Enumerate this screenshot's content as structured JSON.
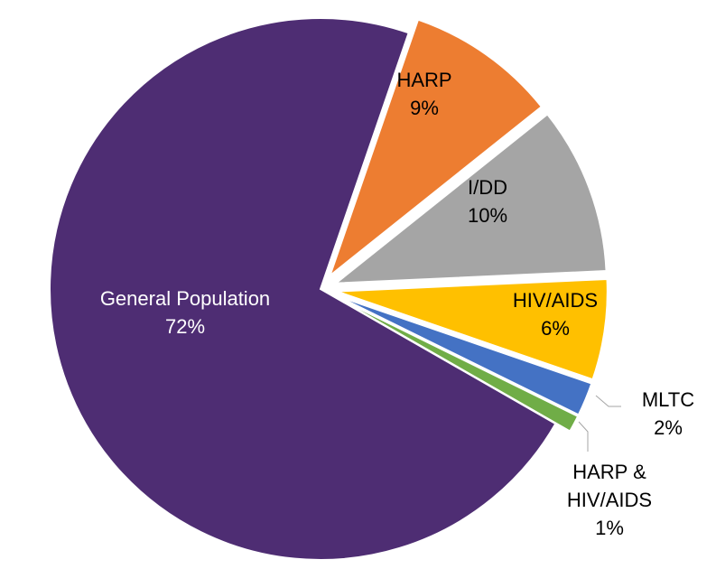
{
  "chart_data": {
    "type": "pie",
    "slices": [
      {
        "name": "HARP",
        "label": "HARP",
        "percent_label": "9%",
        "value": 9,
        "color": "#ED7D31"
      },
      {
        "name": "I/DD",
        "label": "I/DD",
        "percent_label": "10%",
        "value": 10,
        "color": "#A5A5A5"
      },
      {
        "name": "HIV/AIDS",
        "label": "HIV/AIDS",
        "percent_label": "6%",
        "value": 6,
        "color": "#FFC000"
      },
      {
        "name": "MLTC",
        "label": "MLTC",
        "percent_label": "2%",
        "value": 2,
        "color": "#4472C4"
      },
      {
        "name": "HARP & HIV/AIDS",
        "label": "HARP &\nHIV/AIDS",
        "percent_label": "1%",
        "value": 1,
        "color": "#70AD47"
      },
      {
        "name": "General Population",
        "label": "General Population",
        "percent_label": "72%",
        "value": 72,
        "color": "#4E2D73"
      }
    ]
  }
}
